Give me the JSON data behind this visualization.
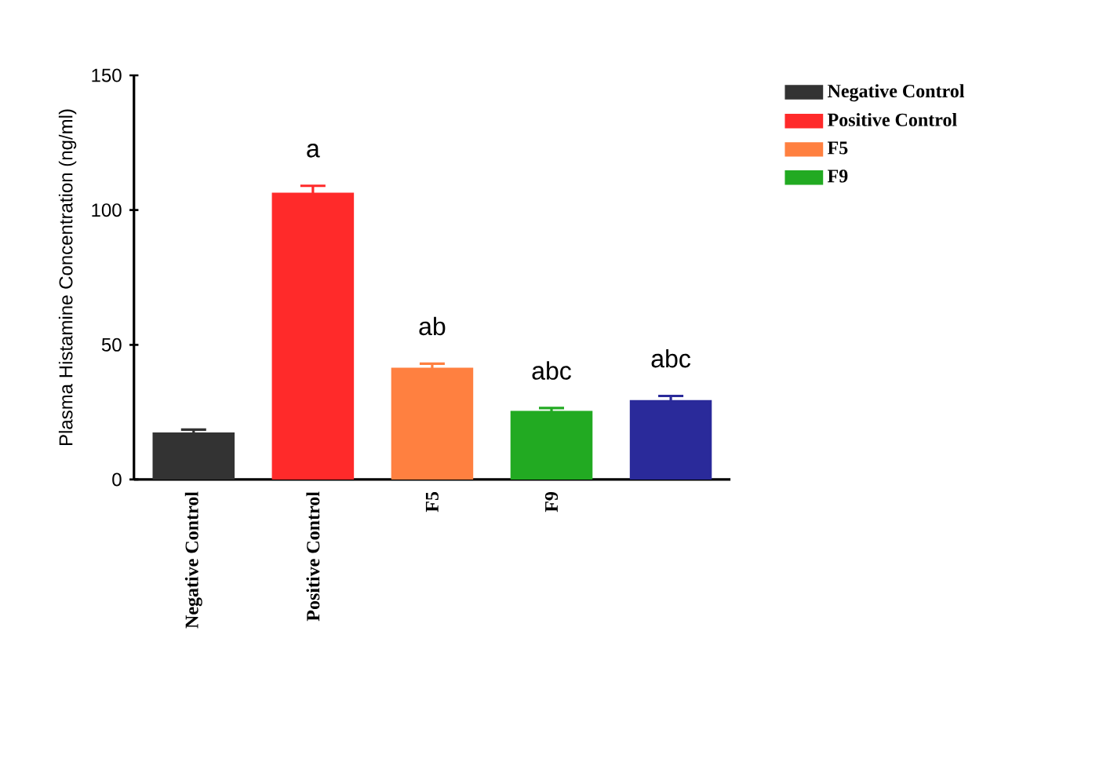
{
  "chart_data": {
    "type": "bar",
    "ylabel": "Plasma Histamine Concentration (ng/ml)",
    "categories": [
      "Negative Control",
      "Positive Control",
      "F5",
      "F9",
      null
    ],
    "series": [
      {
        "name": "Negative Control",
        "color": "#333333",
        "values": [
          17,
          null,
          null,
          null,
          null
        ],
        "errors": [
          1.5,
          null,
          null,
          null,
          null
        ]
      },
      {
        "name": "Positive Control",
        "color": "#ff2a2a",
        "values": [
          null,
          106,
          null,
          null,
          null
        ],
        "errors": [
          null,
          3,
          null,
          null,
          null
        ],
        "value_labels": [
          null,
          "a",
          null,
          null,
          null
        ]
      },
      {
        "name": "F5",
        "color": "#ff8040",
        "values": [
          null,
          null,
          41,
          null,
          null
        ],
        "errors": [
          null,
          null,
          2,
          null,
          null
        ],
        "value_labels": [
          null,
          null,
          "ab",
          null,
          null
        ]
      },
      {
        "name": "F9",
        "color": "#22aa22",
        "values": [
          null,
          null,
          null,
          25,
          null
        ],
        "errors": [
          null,
          null,
          null,
          1.5,
          null
        ],
        "value_labels": [
          null,
          null,
          null,
          "abc",
          null
        ]
      },
      {
        "color": "#2a2a9a",
        "values": [
          null,
          null,
          null,
          null,
          29
        ],
        "errors": [
          null,
          null,
          null,
          null,
          2
        ],
        "value_labels": [
          null,
          null,
          null,
          null,
          "abc"
        ]
      }
    ],
    "ylim": [
      0,
      150
    ],
    "yticks": [
      0,
      50,
      100,
      150
    ],
    "legend": "right"
  }
}
